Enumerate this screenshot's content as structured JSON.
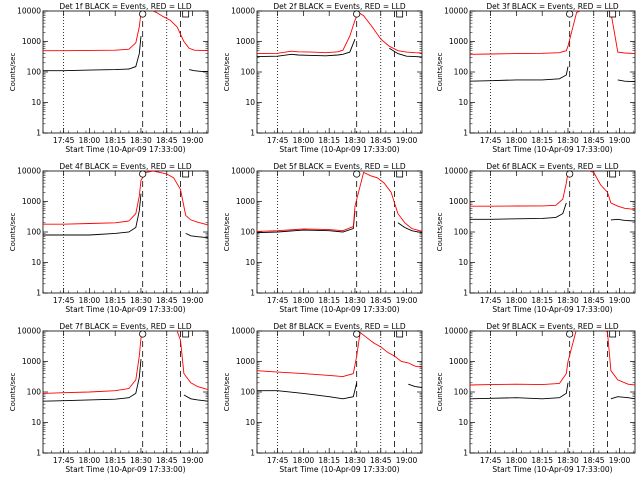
{
  "time_axis": {
    "ticks": [
      "17:45",
      "18:00",
      "18:15",
      "18:30",
      "18:45",
      "19:00"
    ],
    "tick_minutes": [
      0,
      15,
      30,
      45,
      60,
      75
    ],
    "xlabel": "Start Time (10-Apr-09 17:33:00)",
    "xlim_minutes": [
      -12,
      84
    ]
  },
  "y_axis": {
    "label": "Counts/sec",
    "scale": "log",
    "ylim": [
      1,
      10000
    ],
    "ticks": [
      "1",
      "10",
      "100",
      "1000",
      "10000"
    ]
  },
  "colors": {
    "events": "#000000",
    "lld": "#ff0000"
  },
  "chart_data": [
    {
      "type": "line",
      "title": "Det 1f BLACK = Events, RED = LLD",
      "x_minutes": [
        -12,
        0,
        15,
        30,
        38,
        42,
        44,
        45,
        47,
        50,
        54,
        58,
        62,
        66,
        70,
        73,
        76,
        80,
        84
      ],
      "series": [
        {
          "values": [
            110,
            110,
            115,
            120,
            125,
            150,
            400,
            1500,
            null,
            null,
            null,
            null,
            null,
            null,
            null,
            120,
            110,
            105,
            105
          ]
        },
        {
          "values": [
            500,
            500,
            510,
            520,
            560,
            900,
            3000,
            9000,
            12000,
            11000,
            9000,
            6500,
            5000,
            3000,
            1000,
            600,
            520,
            510,
            510
          ]
        }
      ],
      "markers": {
        "dotted_minutes": [
          0,
          60
        ],
        "dashed_minutes": [
          46,
          68
        ],
        "circle_minutes": 46,
        "square_minutes": 71
      }
    },
    {
      "type": "line",
      "title": "Det 2f BLACK = Events, RED = LLD",
      "x_minutes": [
        -12,
        0,
        8,
        12,
        20,
        28,
        35,
        38,
        42,
        45,
        47,
        50,
        55,
        60,
        65,
        70,
        75,
        80,
        84
      ],
      "series": [
        {
          "values": [
            320,
            330,
            380,
            360,
            350,
            340,
            360,
            380,
            450,
            1200,
            null,
            null,
            null,
            null,
            600,
            400,
            330,
            320,
            310
          ]
        },
        {
          "values": [
            400,
            410,
            480,
            460,
            450,
            430,
            460,
            520,
            1500,
            5000,
            9000,
            7000,
            3000,
            1200,
            700,
            500,
            450,
            430,
            420
          ]
        }
      ],
      "markers": {
        "dotted_minutes": [
          0,
          60
        ],
        "dashed_minutes": [
          46,
          68
        ],
        "circle_minutes": 46,
        "square_minutes": 71
      }
    },
    {
      "type": "line",
      "title": "Det 3f BLACK = Events, RED = LLD",
      "x_minutes": [
        -12,
        0,
        15,
        30,
        40,
        44,
        45,
        50,
        55,
        60,
        66,
        70,
        74,
        78,
        84
      ],
      "series": [
        {
          "values": [
            50,
            52,
            55,
            55,
            60,
            80,
            150,
            null,
            null,
            null,
            null,
            null,
            55,
            50,
            48
          ]
        },
        {
          "values": [
            380,
            390,
            400,
            410,
            430,
            500,
            700,
            9000,
            12000,
            12000,
            12000,
            9000,
            450,
            420,
            400
          ]
        }
      ],
      "markers": {
        "dotted_minutes": [
          0,
          60
        ],
        "dashed_minutes": [
          46,
          68
        ],
        "circle_minutes": 46,
        "square_minutes": 71
      }
    },
    {
      "type": "line",
      "title": "Det 4f BLACK = Events, RED = LLD",
      "x_minutes": [
        -12,
        0,
        15,
        30,
        38,
        42,
        44,
        45,
        48,
        52,
        56,
        60,
        64,
        68,
        71,
        74,
        78,
        84
      ],
      "series": [
        {
          "values": [
            80,
            80,
            80,
            90,
            100,
            140,
            500,
            1800,
            null,
            null,
            null,
            null,
            null,
            null,
            90,
            75,
            70,
            65
          ]
        },
        {
          "values": [
            180,
            180,
            190,
            200,
            230,
            400,
            1500,
            5000,
            9000,
            10000,
            9000,
            8000,
            6000,
            2500,
            350,
            250,
            210,
            170
          ]
        }
      ],
      "markers": {
        "dotted_minutes": [
          0,
          60
        ],
        "dashed_minutes": [
          46,
          68
        ],
        "circle_minutes": 46,
        "square_minutes": 71
      }
    },
    {
      "type": "line",
      "title": "Det 5f BLACK = Events, RED = LLD",
      "x_minutes": [
        -12,
        0,
        15,
        30,
        38,
        44,
        45,
        50,
        54,
        58,
        62,
        66,
        70,
        74,
        78,
        84
      ],
      "series": [
        {
          "values": [
            95,
            100,
            115,
            110,
            100,
            130,
            500,
            null,
            null,
            null,
            null,
            null,
            200,
            140,
            110,
            95
          ]
        },
        {
          "values": [
            105,
            110,
            125,
            120,
            110,
            150,
            700,
            9000,
            7000,
            6000,
            4000,
            2000,
            400,
            200,
            130,
            105
          ]
        }
      ],
      "markers": {
        "dotted_minutes": [
          0,
          60
        ],
        "dashed_minutes": [
          46,
          68
        ],
        "circle_minutes": 46,
        "square_minutes": 71
      }
    },
    {
      "type": "line",
      "title": "Det 6f BLACK = Events, RED = LLD",
      "x_minutes": [
        -12,
        0,
        15,
        30,
        38,
        42,
        44,
        45,
        48,
        54,
        60,
        64,
        68,
        70,
        74,
        78,
        84
      ],
      "series": [
        {
          "values": [
            260,
            260,
            270,
            280,
            300,
            400,
            900,
            null,
            null,
            null,
            null,
            null,
            null,
            250,
            260,
            240,
            230
          ]
        },
        {
          "values": [
            700,
            700,
            710,
            720,
            750,
            1200,
            4000,
            9000,
            12000,
            12000,
            9000,
            3500,
            2000,
            900,
            700,
            600,
            550
          ]
        }
      ],
      "markers": {
        "dotted_minutes": [
          0,
          60
        ],
        "dashed_minutes": [
          46,
          68
        ],
        "circle_minutes": 46,
        "square_minutes": 71
      }
    },
    {
      "type": "line",
      "title": "Det 7f BLACK = Events, RED = LLD",
      "x_minutes": [
        -12,
        0,
        15,
        30,
        38,
        42,
        44,
        45,
        48,
        54,
        60,
        66,
        68,
        70,
        74,
        78,
        84
      ],
      "series": [
        {
          "values": [
            50,
            52,
            55,
            58,
            65,
            90,
            300,
            1200,
            null,
            null,
            null,
            null,
            null,
            80,
            60,
            55,
            50
          ]
        },
        {
          "values": [
            90,
            95,
            100,
            110,
            130,
            250,
            1500,
            6000,
            11000,
            12000,
            12000,
            10000,
            5000,
            400,
            200,
            150,
            120
          ]
        }
      ],
      "markers": {
        "dotted_minutes": [
          0,
          60
        ],
        "dashed_minutes": [
          46,
          68
        ],
        "circle_minutes": 46,
        "square_minutes": 71
      }
    },
    {
      "type": "line",
      "title": "Det 8f BLACK = Events, RED = LLD",
      "x_minutes": [
        -12,
        0,
        15,
        30,
        38,
        44,
        46,
        48,
        52,
        56,
        60,
        64,
        68,
        72,
        76,
        80,
        84
      ],
      "series": [
        {
          "values": [
            110,
            110,
            90,
            70,
            60,
            70,
            200,
            null,
            null,
            null,
            null,
            null,
            null,
            null,
            180,
            150,
            140
          ]
        },
        {
          "values": [
            500,
            450,
            400,
            350,
            320,
            400,
            1500,
            9000,
            6000,
            4000,
            3000,
            2000,
            1500,
            1000,
            900,
            700,
            650
          ]
        }
      ],
      "markers": {
        "dotted_minutes": [
          0,
          60
        ],
        "dashed_minutes": [
          46,
          68
        ],
        "circle_minutes": 46,
        "square_minutes": 71
      }
    },
    {
      "type": "line",
      "title": "Det 9f BLACK = Events, RED = LLD",
      "x_minutes": [
        -12,
        0,
        15,
        30,
        40,
        44,
        45,
        50,
        56,
        62,
        66,
        68,
        70,
        74,
        80,
        84
      ],
      "series": [
        {
          "values": [
            60,
            62,
            65,
            60,
            65,
            90,
            200,
            null,
            null,
            null,
            null,
            null,
            60,
            70,
            65,
            60
          ]
        },
        {
          "values": [
            170,
            175,
            180,
            175,
            190,
            400,
            1000,
            12000,
            12000,
            12000,
            12000,
            9000,
            500,
            250,
            180,
            170
          ]
        }
      ],
      "markers": {
        "dotted_minutes": [
          0,
          60
        ],
        "dashed_minutes": [
          46,
          68
        ],
        "circle_minutes": 46,
        "square_minutes": 71
      }
    }
  ]
}
